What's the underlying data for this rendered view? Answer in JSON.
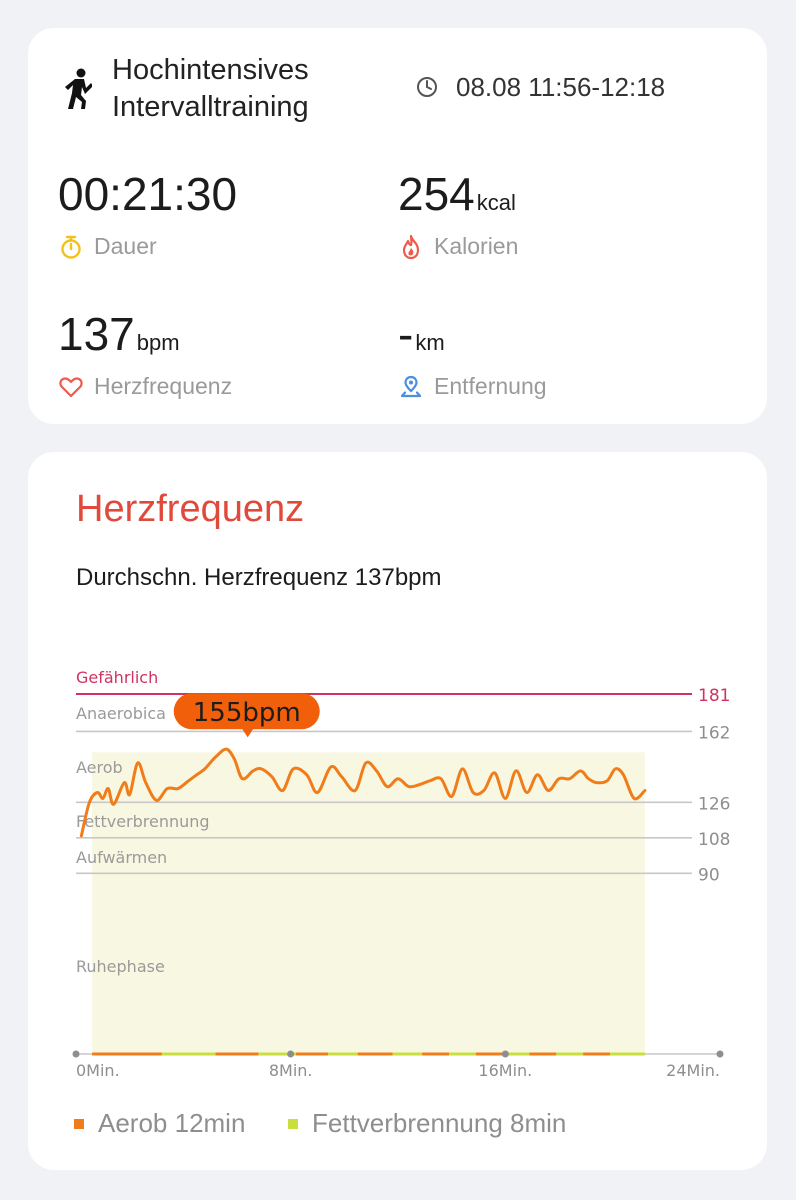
{
  "summary": {
    "activity_icon": "hiit-figure-icon",
    "activity_title_line1": "Hochintensives",
    "activity_title_line2": "Intervalltraining",
    "time_icon": "clock-icon",
    "time_range": "08.08 11:56-12:18",
    "metrics": [
      {
        "value": "00:21:30",
        "unit": "",
        "label": "Dauer",
        "icon": "stopwatch-icon",
        "icon_color": "#f2c21b"
      },
      {
        "value": "254",
        "unit": "kcal",
        "label": "Kalorien",
        "icon": "flame-icon",
        "icon_color": "#ee5a4c"
      },
      {
        "value": "137",
        "unit": "bpm",
        "label": "Herzfrequenz",
        "icon": "heart-icon",
        "icon_color": "#ee5a4c"
      },
      {
        "value": "-",
        "unit": "km",
        "label": "Entfernung",
        "icon": "location-pin-icon",
        "icon_color": "#4a8fe0"
      }
    ]
  },
  "heart_rate": {
    "title": "Herzfrequenz",
    "average_text": "Durchschn. Herzfrequenz 137bpm"
  },
  "colors": {
    "title_red": "#e04a3b",
    "danger_line": "#d0335f",
    "curve": "#f07c1a",
    "peak_badge": "#f25f0a",
    "fill": "#f8f8e2",
    "aerob": "#f07c1a",
    "fat_burn": "#c8df3d"
  },
  "chart_data": {
    "type": "line",
    "x_unit": "Min.",
    "xlim": [
      0,
      24
    ],
    "x_ticks": [
      {
        "value": 0,
        "label": "0Min."
      },
      {
        "value": 8,
        "label": "8Min."
      },
      {
        "value": 16,
        "label": "16Min."
      },
      {
        "value": 24,
        "label": "24Min."
      }
    ],
    "y_ref_lines": [
      {
        "value": 181,
        "label": "181",
        "color": "#d0335f"
      },
      {
        "value": 162,
        "label": "162",
        "color": "#c7c7c7"
      },
      {
        "value": 126,
        "label": "126",
        "color": "#c7c7c7"
      },
      {
        "value": 108,
        "label": "108",
        "color": "#c7c7c7"
      },
      {
        "value": 90,
        "label": "90",
        "color": "#c7c7c7"
      }
    ],
    "zones": [
      {
        "name": "Gefährlich",
        "value": 181,
        "color": "#d0335f"
      },
      {
        "name": "Anaerobica",
        "value": 162,
        "color": "#9a9a9a"
      },
      {
        "name": "Aerob",
        "value": 144,
        "color": "#9a9a9a"
      },
      {
        "name": "Fettverbrennung",
        "value": 126,
        "color": "#9a9a9a"
      },
      {
        "name": "Aufwärmen",
        "value": 108,
        "color": "#9a9a9a"
      },
      {
        "name": "Ruhephase",
        "value": 54,
        "color": "#9a9a9a"
      }
    ],
    "peak": {
      "x": 6.4,
      "y": 155,
      "label": "155bpm"
    },
    "series": [
      {
        "x": [
          0.2,
          0.5,
          0.8,
          1.0,
          1.2,
          1.4,
          1.8,
          2.0,
          2.3,
          2.6,
          3.0,
          3.4,
          3.8,
          4.2,
          4.5,
          4.8,
          5.2,
          5.6,
          5.9,
          6.2,
          6.6,
          6.9,
          7.3,
          7.7,
          8.1,
          8.6,
          9.0,
          9.5,
          9.9,
          10.4,
          10.8,
          11.2,
          11.6,
          12.0,
          12.4,
          12.8,
          13.2,
          13.6,
          14.0,
          14.4,
          14.8,
          15.2,
          15.6,
          16.0,
          16.4,
          16.8,
          17.2,
          17.6,
          18.0,
          18.4,
          18.8,
          19.1,
          19.4,
          19.8,
          20.1,
          20.4,
          20.8,
          21.2
        ],
        "y": [
          109,
          126,
          131,
          128,
          133,
          125,
          136,
          130,
          146,
          136,
          127,
          133,
          133,
          137,
          140,
          143,
          149,
          153,
          148,
          138,
          142,
          143,
          139,
          132,
          143,
          140,
          131,
          144,
          139,
          132,
          146,
          142,
          134,
          138,
          134,
          135,
          137,
          138,
          129,
          143,
          131,
          132,
          141,
          128,
          142,
          131,
          140,
          132,
          138,
          138,
          142,
          138,
          136,
          137,
          143,
          140,
          128,
          132
        ]
      }
    ],
    "legend": [
      {
        "label": "Aerob 12min",
        "color": "#f07c1a"
      },
      {
        "label": "Fettverbrennung 8min",
        "color": "#c8df3d"
      }
    ]
  }
}
